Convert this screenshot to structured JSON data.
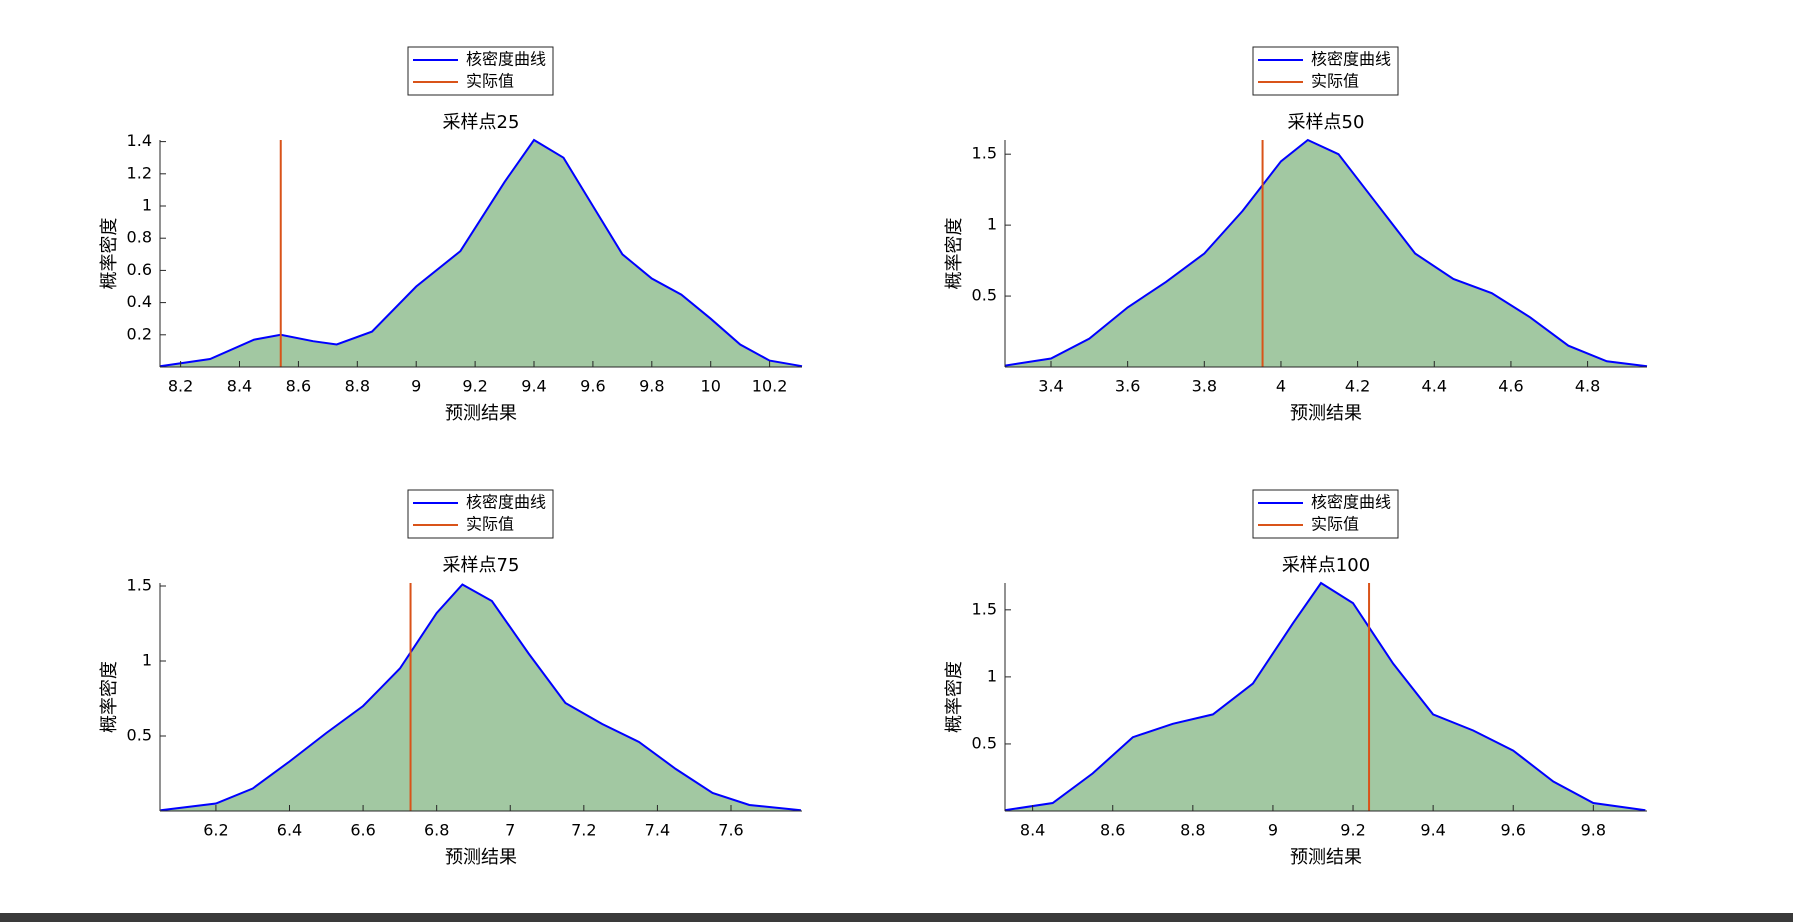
{
  "chart_data": [
    {
      "type": "line",
      "title": "采样点25",
      "xlabel": "预测结果",
      "ylabel": "概率密度",
      "x": [
        8.13,
        8.3,
        8.45,
        8.54,
        8.65,
        8.73,
        8.85,
        9.0,
        9.15,
        9.3,
        9.4,
        9.5,
        9.6,
        9.7,
        9.8,
        9.9,
        10.0,
        10.1,
        10.2,
        10.31
      ],
      "series": [
        {
          "name": "核密度曲线",
          "color": "#0000ff",
          "fill_color": "#a2c8a2",
          "values": [
            0.005,
            0.05,
            0.17,
            0.2,
            0.16,
            0.14,
            0.22,
            0.5,
            0.72,
            1.15,
            1.41,
            1.3,
            1.0,
            0.7,
            0.55,
            0.45,
            0.3,
            0.14,
            0.04,
            0.005
          ]
        }
      ],
      "reference_line": {
        "name": "实际值",
        "color": "#d95319",
        "x": 8.54
      },
      "xlim": [
        8.13,
        10.31
      ],
      "ylim": [
        0,
        1.41
      ],
      "xticks": [
        8.2,
        8.4,
        8.6,
        8.8,
        9,
        9.2,
        9.4,
        9.6,
        9.8,
        10,
        10.2
      ],
      "yticks": [
        0.2,
        0.4,
        0.6,
        0.8,
        1,
        1.2,
        1.4
      ]
    },
    {
      "type": "line",
      "title": "采样点50",
      "xlabel": "预测结果",
      "ylabel": "概率密度",
      "x": [
        3.28,
        3.4,
        3.5,
        3.6,
        3.7,
        3.8,
        3.9,
        4.0,
        4.07,
        4.15,
        4.25,
        4.35,
        4.45,
        4.55,
        4.65,
        4.75,
        4.85,
        4.955
      ],
      "series": [
        {
          "name": "核密度曲线",
          "color": "#0000ff",
          "fill_color": "#a2c8a2",
          "values": [
            0.01,
            0.06,
            0.2,
            0.42,
            0.6,
            0.8,
            1.1,
            1.45,
            1.6,
            1.5,
            1.15,
            0.8,
            0.62,
            0.52,
            0.35,
            0.15,
            0.04,
            0.005
          ]
        }
      ],
      "reference_line": {
        "name": "实际值",
        "color": "#d95319",
        "x": 3.952
      },
      "xlim": [
        3.28,
        4.955
      ],
      "ylim": [
        0,
        1.6
      ],
      "xticks": [
        3.4,
        3.6,
        3.8,
        4,
        4.2,
        4.4,
        4.6,
        4.8
      ],
      "yticks": [
        0.5,
        1,
        1.5
      ]
    },
    {
      "type": "line",
      "title": "采样点75",
      "xlabel": "预测结果",
      "ylabel": "概率密度",
      "x": [
        6.05,
        6.2,
        6.3,
        6.4,
        6.5,
        6.6,
        6.7,
        6.8,
        6.87,
        6.95,
        7.05,
        7.15,
        7.25,
        7.35,
        7.45,
        7.55,
        7.65,
        7.79
      ],
      "series": [
        {
          "name": "核密度曲线",
          "color": "#0000ff",
          "fill_color": "#a2c8a2",
          "values": [
            0.005,
            0.05,
            0.15,
            0.33,
            0.52,
            0.7,
            0.95,
            1.32,
            1.51,
            1.4,
            1.05,
            0.72,
            0.58,
            0.46,
            0.28,
            0.12,
            0.04,
            0.005
          ]
        }
      ],
      "reference_line": {
        "name": "实际值",
        "color": "#d95319",
        "x": 6.729
      },
      "xlim": [
        6.048,
        7.793
      ],
      "ylim": [
        0,
        1.52
      ],
      "xticks": [
        6.2,
        6.4,
        6.6,
        6.8,
        7,
        7.2,
        7.4,
        7.6
      ],
      "yticks": [
        0.5,
        1,
        1.5
      ]
    },
    {
      "type": "line",
      "title": "采样点100",
      "xlabel": "预测结果",
      "ylabel": "概率密度",
      "x": [
        8.33,
        8.45,
        8.55,
        8.65,
        8.75,
        8.85,
        8.95,
        9.05,
        9.12,
        9.2,
        9.3,
        9.4,
        9.5,
        9.6,
        9.7,
        9.8,
        9.93
      ],
      "series": [
        {
          "name": "核密度曲线",
          "color": "#0000ff",
          "fill_color": "#a2c8a2",
          "values": [
            0.005,
            0.06,
            0.28,
            0.55,
            0.65,
            0.72,
            0.95,
            1.4,
            1.7,
            1.55,
            1.1,
            0.72,
            0.6,
            0.45,
            0.22,
            0.06,
            0.005
          ]
        }
      ],
      "reference_line": {
        "name": "实际值",
        "color": "#d95319",
        "x": 9.24
      },
      "xlim": [
        8.331,
        9.934
      ],
      "ylim": [
        0,
        1.7
      ],
      "xticks": [
        8.4,
        8.6,
        8.8,
        9,
        9.2,
        9.4,
        9.6,
        9.8
      ],
      "yticks": [
        0.5,
        1,
        1.5
      ]
    }
  ]
}
